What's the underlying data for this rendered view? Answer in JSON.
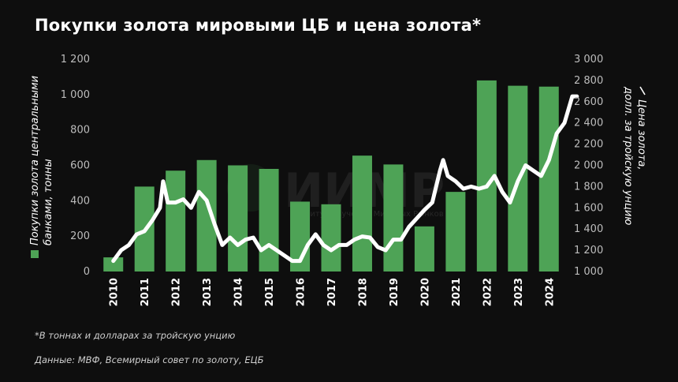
{
  "title": "Покупки золота мировыми ЦБ и цена золота*",
  "notes": {
    "units": "*В тоннах и долларах за тройскую унцию",
    "source": "Данные: МВФ, Всемирный совет по золоту, ЕЦБ"
  },
  "watermark": {
    "text": "ИИМР",
    "sub": "Институт Изучения Мировых Рынков"
  },
  "colors": {
    "bar": "#4ea356",
    "line": "#ffffff",
    "background": "#0e0e0e"
  },
  "chart_data": {
    "type": "bar",
    "categories": [
      "2010",
      "2011",
      "2012",
      "2013",
      "2014",
      "2015",
      "2016",
      "2017",
      "2018",
      "2019",
      "2020",
      "2021",
      "2022",
      "2023",
      "2024"
    ],
    "series": [
      {
        "name": "Покупки золота центральными банками, тонны",
        "axis": "left",
        "type": "bar",
        "values": [
          80,
          480,
          570,
          630,
          600,
          580,
          395,
          380,
          655,
          605,
          255,
          450,
          1080,
          1050,
          1045
        ]
      },
      {
        "name": "Цена золота, долл. за тройскую унцию",
        "axis": "right",
        "type": "line",
        "x": [
          2010.0,
          2010.25,
          2010.5,
          2010.75,
          2011.0,
          2011.25,
          2011.5,
          2011.6,
          2011.75,
          2012.0,
          2012.25,
          2012.5,
          2012.75,
          2013.0,
          2013.25,
          2013.5,
          2013.75,
          2014.0,
          2014.25,
          2014.5,
          2014.75,
          2015.0,
          2015.25,
          2015.5,
          2015.75,
          2016.0,
          2016.25,
          2016.5,
          2016.75,
          2017.0,
          2017.25,
          2017.5,
          2017.75,
          2018.0,
          2018.25,
          2018.5,
          2018.75,
          2019.0,
          2019.25,
          2019.5,
          2019.75,
          2020.0,
          2020.25,
          2020.5,
          2020.6,
          2020.75,
          2021.0,
          2021.25,
          2021.5,
          2021.75,
          2022.0,
          2022.25,
          2022.5,
          2022.75,
          2023.0,
          2023.25,
          2023.5,
          2023.75,
          2024.0,
          2024.25,
          2024.5,
          2024.75,
          2024.9
        ],
        "values": [
          1100,
          1200,
          1250,
          1350,
          1380,
          1480,
          1600,
          1850,
          1650,
          1650,
          1680,
          1600,
          1750,
          1670,
          1450,
          1250,
          1320,
          1250,
          1300,
          1320,
          1200,
          1250,
          1200,
          1150,
          1100,
          1100,
          1250,
          1350,
          1250,
          1200,
          1250,
          1250,
          1300,
          1330,
          1320,
          1230,
          1200,
          1300,
          1300,
          1420,
          1500,
          1580,
          1650,
          1950,
          2050,
          1900,
          1850,
          1780,
          1800,
          1780,
          1800,
          1900,
          1750,
          1650,
          1850,
          2000,
          1950,
          1900,
          2050,
          2300,
          2400,
          2650,
          2650
        ]
      }
    ],
    "ylabel": "Покупки золота центральными банками, тонны",
    "y2label": "Цена золота, долл. за тройскую унцию",
    "ylim": [
      0,
      1200
    ],
    "y2lim": [
      1000,
      3000
    ],
    "yticks": [
      "0",
      "200",
      "400",
      "600",
      "800",
      "1 000",
      "1 200"
    ],
    "y2ticks": [
      "1 000",
      "1 200",
      "1 400",
      "1 600",
      "1 800",
      "2 000",
      "2 200",
      "2 400",
      "2 600",
      "2 800",
      "3 000"
    ],
    "legend": "left-vertical",
    "grid": false
  }
}
